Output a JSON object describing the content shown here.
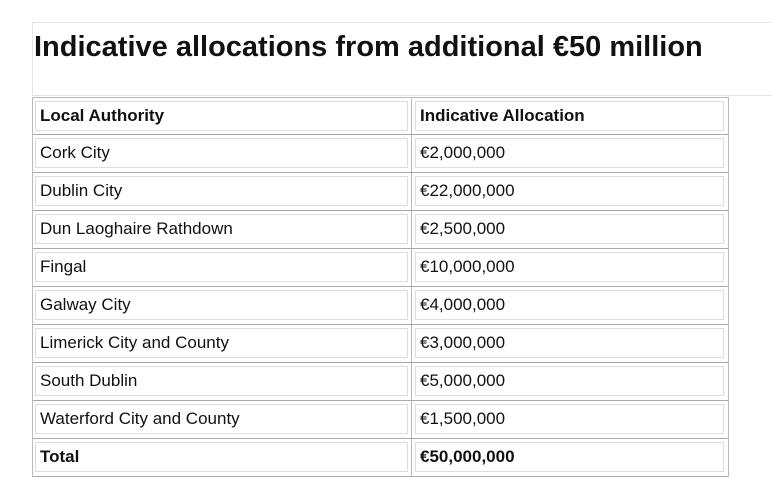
{
  "header": {
    "title": "Indicative allocations from additional €50 million"
  },
  "table": {
    "columns": [
      "Local Authority",
      "Indicative Allocation"
    ],
    "rows": [
      [
        "Cork City",
        "€2,000,000"
      ],
      [
        "Dublin City",
        "€22,000,000"
      ],
      [
        "Dun Laoghaire Rathdown",
        "€2,500,000"
      ],
      [
        "Fingal",
        "€10,000,000"
      ],
      [
        "Galway City",
        "€4,000,000"
      ],
      [
        "Limerick City and County",
        "€3,000,000"
      ],
      [
        "South Dublin",
        "€5,000,000"
      ],
      [
        "Waterford City and County",
        "€1,500,000"
      ]
    ],
    "total": [
      "Total",
      "€50,000,000"
    ]
  }
}
